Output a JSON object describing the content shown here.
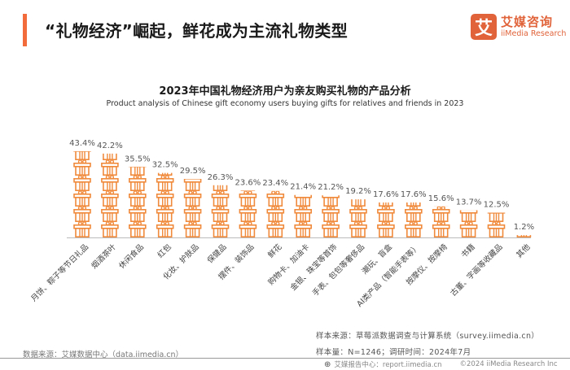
{
  "header": {
    "title": "“礼物经济”崛起，鲜花成为主流礼物类型",
    "accent_color": "#f26b3a"
  },
  "logo": {
    "mark": "艾",
    "name_cn": "艾媒咨询",
    "name_en": "iiMedia Research",
    "color": "#e0633a"
  },
  "chart_data": {
    "type": "bar",
    "style": "pictograph (stacked gift-box icons)",
    "title": "2023年中国礼物经济用户为亲友购买礼物的产品分析",
    "subtitle": "Product analysis of Chinese gift economy users buying gifts for relatives and friends in 2023",
    "xlabel": "",
    "ylabel": "",
    "unit": "%",
    "grid": false,
    "legend": "none",
    "bar_color": "#f08a3c",
    "categories": [
      "月饼、粽子等节日礼品",
      "烟酒茶叶",
      "休闲食品",
      "红包",
      "化妆、护肤品",
      "保健品",
      "摆件、装饰品",
      "鲜花",
      "购物卡、加油卡",
      "金银、珠宝等首饰",
      "手表、包包等奢侈品",
      "潮玩、盲盒",
      "AI类产品（智能手表等）",
      "按摩仪、按摩椅",
      "书籍",
      "古董、字画等收藏品",
      "其他"
    ],
    "values": [
      43.4,
      42.2,
      35.5,
      32.5,
      29.5,
      26.3,
      23.6,
      23.4,
      21.4,
      21.2,
      19.2,
      17.6,
      17.6,
      15.6,
      13.7,
      12.5,
      1.2
    ],
    "labels": [
      "43.4%",
      "42.2%",
      "35.5%",
      "32.5%",
      "29.5%",
      "26.3%",
      "23.6%",
      "23.4%",
      "21.4%",
      "21.2%",
      "19.2%",
      "17.6%",
      "17.6%",
      "15.6%",
      "13.7%",
      "12.5%",
      "1.2%"
    ],
    "ylim": [
      0,
      45
    ]
  },
  "sources": {
    "left": "数据来源：艾媒数据中心（data.iimedia.cn）",
    "right_line1": "样本来源：草莓派数据调查与计算系统（survey.iimedia.cn）",
    "right_line2": "样本量：N=1246；调研时间：2024年7月"
  },
  "footer": {
    "report_center": "艾媒报告中心：report.iimedia.cn",
    "copyright": "©2024  iiMedia Research Inc"
  }
}
